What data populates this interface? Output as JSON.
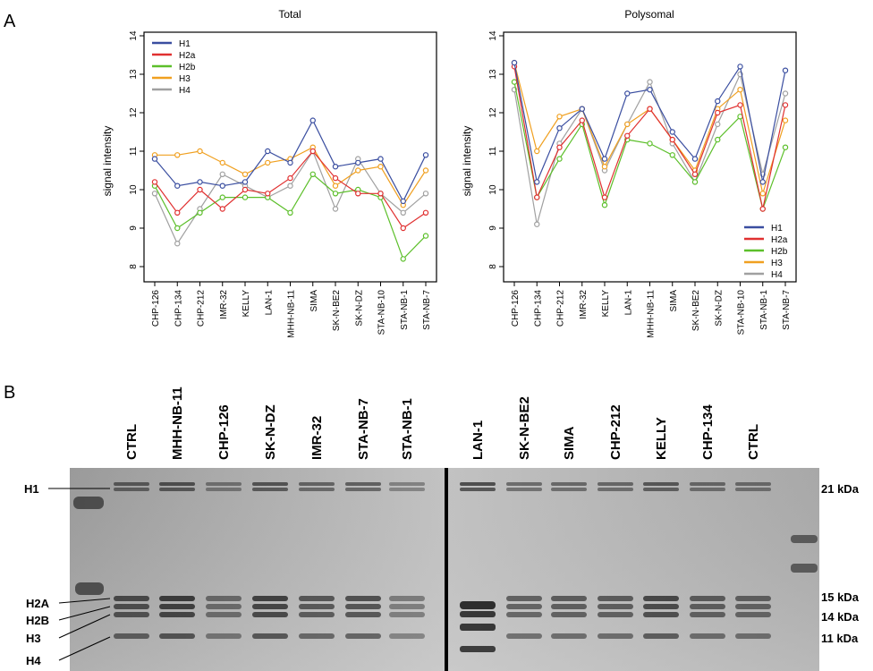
{
  "figure": {
    "panel_a_label": "A",
    "panel_b_label": "B"
  },
  "chart_data": [
    {
      "type": "line",
      "title": "Total",
      "xlabel": "",
      "ylabel": "signal intensity",
      "ylim": [
        8,
        14
      ],
      "yticks": [
        "8",
        "9",
        "10",
        "11",
        "12",
        "13",
        "14"
      ],
      "categories": [
        "CHP-126",
        "CHP-134",
        "CHP-212",
        "IMR-32",
        "KELLY",
        "LAN-1",
        "MHH-NB-11",
        "SIMA",
        "SK-N-BE2",
        "SK-N-DZ",
        "STA-NB-10",
        "STA-NB-1",
        "STA-NB-7"
      ],
      "legend_position": "top-left",
      "series": [
        {
          "name": "H1",
          "color": "#3a4ea0",
          "values": [
            10.8,
            10.1,
            10.2,
            10.1,
            10.2,
            11.0,
            10.7,
            11.8,
            10.6,
            10.7,
            10.8,
            9.7,
            10.9
          ]
        },
        {
          "name": "H2a",
          "color": "#e03030",
          "values": [
            10.2,
            9.4,
            10.0,
            9.5,
            10.0,
            9.9,
            10.3,
            11.0,
            10.3,
            9.9,
            9.9,
            9.0,
            9.4
          ]
        },
        {
          "name": "H2b",
          "color": "#5cbf2a",
          "values": [
            10.1,
            9.0,
            9.4,
            9.8,
            9.8,
            9.8,
            9.4,
            10.4,
            9.9,
            10.0,
            9.8,
            8.2,
            8.8
          ]
        },
        {
          "name": "H3",
          "color": "#f0a020",
          "values": [
            10.9,
            10.9,
            11.0,
            10.7,
            10.4,
            10.7,
            10.8,
            11.1,
            10.1,
            10.5,
            10.6,
            9.6,
            10.5
          ]
        },
        {
          "name": "H4",
          "color": "#a0a0a0",
          "values": [
            9.9,
            8.6,
            9.5,
            10.4,
            10.1,
            9.8,
            10.1,
            11.0,
            9.5,
            10.8,
            9.9,
            9.4,
            9.9
          ]
        }
      ]
    },
    {
      "type": "line",
      "title": "Polysomal",
      "xlabel": "",
      "ylabel": "signal intensity",
      "ylim": [
        8,
        14
      ],
      "yticks": [
        "8",
        "9",
        "10",
        "11",
        "12",
        "13",
        "14"
      ],
      "categories": [
        "CHP-126",
        "CHP-134",
        "CHP-212",
        "IMR-32",
        "KELLY",
        "LAN-1",
        "MHH-NB-11",
        "SIMA",
        "SK-N-BE2",
        "SK-N-DZ",
        "STA-NB-10",
        "STA-NB-1",
        "STA-NB-7"
      ],
      "legend_position": "bottom-right",
      "series": [
        {
          "name": "H1",
          "color": "#3a4ea0",
          "values": [
            13.3,
            10.2,
            11.6,
            12.1,
            10.8,
            12.5,
            12.6,
            11.5,
            10.8,
            12.3,
            13.2,
            10.2,
            13.1
          ]
        },
        {
          "name": "H2a",
          "color": "#e03030",
          "values": [
            13.2,
            9.8,
            11.1,
            11.8,
            9.8,
            11.4,
            12.1,
            11.3,
            10.4,
            12.0,
            12.2,
            9.5,
            12.2
          ]
        },
        {
          "name": "H2b",
          "color": "#5cbf2a",
          "values": [
            12.8,
            9.8,
            10.8,
            11.7,
            9.6,
            11.3,
            11.2,
            10.9,
            10.2,
            11.3,
            11.9,
            9.5,
            11.1
          ]
        },
        {
          "name": "H3",
          "color": "#f0a020",
          "values": [
            13.3,
            11.0,
            11.9,
            12.1,
            10.6,
            11.7,
            12.1,
            11.3,
            10.5,
            12.1,
            12.6,
            9.9,
            11.8
          ]
        },
        {
          "name": "H4",
          "color": "#a0a0a0",
          "values": [
            12.6,
            9.1,
            11.2,
            12.1,
            10.5,
            11.7,
            12.8,
            11.2,
            10.2,
            11.7,
            13.0,
            10.4,
            12.5
          ]
        }
      ]
    }
  ],
  "gel": {
    "lanes_left": [
      "CTRL",
      "MHH-NB-11",
      "CHP-126",
      "SK-N-DZ",
      "IMR-32",
      "STA-NB-7",
      "STA-NB-1"
    ],
    "lanes_right": [
      "LAN-1",
      "SK-N-BE2",
      "SIMA",
      "CHP-212",
      "KELLY",
      "CHP-134",
      "CTRL"
    ],
    "left_markers": [
      "H1",
      "H2A",
      "H2B",
      "H3",
      "H4"
    ],
    "right_markers": [
      "21 kDa",
      "15 kDa",
      "14 kDa",
      "11 kDa"
    ]
  }
}
